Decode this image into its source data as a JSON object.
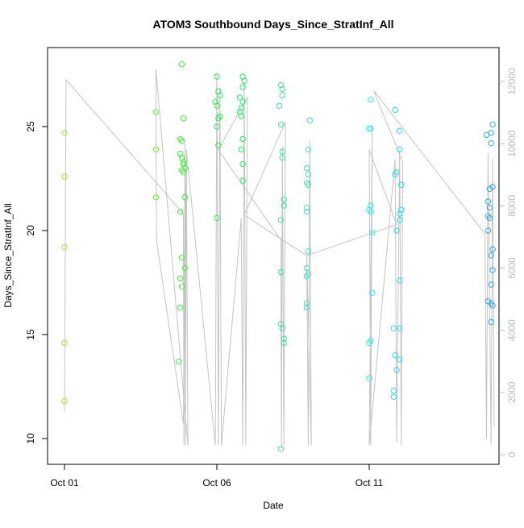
{
  "chart_data": {
    "type": "scatter",
    "title": "ATOM3 Southbound Days_Since_StratInf_All",
    "x_label": "Date",
    "y_label": "Days_Since_StratInf_All",
    "xlim": [
      -0.556,
      14.26
    ],
    "ylim": [
      8.76,
      28.8
    ],
    "y2lim": [
      -311,
      13089
    ],
    "xticks": [
      {
        "value": 0,
        "label": "Oct 01"
      },
      {
        "value": 5,
        "label": "Oct 06"
      },
      {
        "value": 10,
        "label": "Oct 11"
      }
    ],
    "yticks": [
      10,
      15,
      20,
      25
    ],
    "y2ticks": [
      0,
      2000,
      4000,
      6000,
      8000,
      10000,
      12000
    ],
    "series": [
      {
        "type": "line",
        "axis": "y2",
        "color": "#c4c4c4",
        "x": [
          0,
          0.05,
          3.9,
          3.92,
          3.95,
          3.97,
          4.0,
          4.05,
          3.0,
          3.02,
          3.9,
          4.0,
          4.95,
          5.0,
          5.05,
          5.1,
          5.15,
          5.8,
          5.85,
          5.9,
          5.95,
          6.0,
          5.05,
          7.1,
          7.12,
          7.15,
          7.2,
          7.25,
          5.9,
          7.95,
          8.0,
          8.05,
          8.1,
          7.95,
          10.9,
          10.0,
          10.05,
          10.1,
          10.0,
          10.85,
          10.9,
          11.0,
          11.05,
          11.1,
          10.15,
          13.8,
          13.85,
          13.9,
          14.0,
          14.05,
          14.1
        ],
        "values": [
          1400,
          12050,
          7750,
          300,
          10000,
          300,
          9500,
          300,
          12400,
          6900,
          1000,
          9800,
          300,
          12300,
          300,
          11800,
          300,
          7600,
          300,
          12000,
          300,
          11500,
          9800,
          6900,
          200,
          9900,
          300,
          10700,
          7700,
          6400,
          300,
          10100,
          300,
          6400,
          7400,
          9800,
          300,
          10600,
          300,
          9500,
          400,
          9800,
          300,
          9400,
          11700,
          7100,
          500,
          9700,
          300,
          9500,
          900
        ]
      },
      {
        "color": "#9ae640",
        "x": [
          0,
          0,
          0,
          0,
          0
        ],
        "values": [
          24.7,
          22.6,
          19.2,
          14.6,
          11.8
        ]
      },
      {
        "color": "#7ae640",
        "x": [
          3.0,
          3.0,
          3.0
        ],
        "values": [
          25.7,
          23.9,
          21.6
        ]
      },
      {
        "color": "#4de64a",
        "x": [
          3.85,
          3.9,
          3.8,
          3.85,
          3.8,
          3.85,
          3.9,
          3.9,
          3.95,
          3.85,
          3.9,
          3.95,
          3.8,
          3.85,
          3.95,
          3.8,
          3.85,
          3.8,
          3.75
        ],
        "values": [
          28.0,
          25.4,
          24.4,
          24.3,
          23.7,
          23.5,
          23.3,
          23.2,
          23.0,
          22.9,
          22.8,
          21.6,
          20.9,
          18.7,
          18.2,
          17.7,
          17.3,
          16.3,
          13.7
        ]
      },
      {
        "color": "#33e655",
        "x": [
          5.0,
          5.05,
          5.1,
          4.95,
          5.0,
          5.1,
          5.05,
          5.0,
          5.05,
          5.0
        ],
        "values": [
          27.4,
          26.7,
          26.5,
          26.2,
          26.0,
          25.5,
          25.4,
          25.0,
          24.1,
          20.6
        ]
      },
      {
        "color": "#33e670",
        "x": [
          5.85,
          5.9,
          5.85,
          5.75,
          5.85,
          5.8,
          5.75,
          5.8,
          5.85,
          5.8,
          5.85,
          5.85
        ],
        "values": [
          27.4,
          27.2,
          26.9,
          26.4,
          26.2,
          25.9,
          25.7,
          25.5,
          24.4,
          23.9,
          23.2,
          22.4
        ]
      },
      {
        "color": "#33e69a",
        "x": [
          7.1,
          7.15,
          7.15,
          7.05,
          7.1,
          7.15,
          7.15,
          7.2,
          7.2,
          7.1,
          7.1,
          7.1,
          7.15,
          7.2,
          7.2,
          7.1
        ],
        "values": [
          27.0,
          26.8,
          26.5,
          26.0,
          25.1,
          23.8,
          23.5,
          21.5,
          21.2,
          20.5,
          18.0,
          15.5,
          15.3,
          14.8,
          14.6,
          9.5
        ]
      },
      {
        "color": "#33e6bb",
        "x": [
          8.05,
          8.0,
          7.95,
          8.0,
          7.95,
          8.0,
          7.95,
          7.95,
          8.0,
          7.95,
          8.0,
          7.95,
          7.95,
          7.95
        ],
        "values": [
          25.3,
          23.9,
          23.0,
          22.7,
          22.3,
          22.2,
          21.1,
          20.9,
          19.0,
          18.2,
          17.9,
          17.8,
          16.5,
          16.3
        ]
      },
      {
        "color": "#33e6e6",
        "x": [
          10.05,
          10.0,
          10.05,
          10.05,
          10.0,
          10.05,
          10.1,
          10.1,
          10.05,
          10.0,
          10.0
        ],
        "values": [
          26.3,
          24.9,
          24.9,
          21.2,
          21.0,
          20.9,
          19.9,
          17.0,
          14.7,
          14.6,
          12.9
        ]
      },
      {
        "color": "#33d6e6",
        "x": [
          10.85,
          11.0,
          11.0,
          10.9,
          10.85,
          11.05,
          11.05,
          11.0,
          11.0,
          10.9,
          11.0,
          10.8,
          11.0,
          10.85,
          11.0,
          10.9,
          10.8,
          10.8
        ],
        "values": [
          25.8,
          24.8,
          23.9,
          22.8,
          22.7,
          22.2,
          21.0,
          20.8,
          20.5,
          20.0,
          17.6,
          15.3,
          15.3,
          14.0,
          13.8,
          13.3,
          12.3,
          12.0
        ]
      },
      {
        "color": "#3aa6dd",
        "x": [
          14.05,
          14.0,
          13.85,
          14.0,
          14.05,
          13.95,
          13.9,
          13.95,
          13.9,
          13.95,
          13.9,
          14.05,
          14.0,
          14.05,
          14.0,
          13.9,
          14.0,
          14.05,
          14.0
        ],
        "values": [
          25.1,
          24.7,
          24.6,
          24.2,
          22.1,
          22.0,
          21.4,
          21.1,
          20.7,
          20.6,
          20.0,
          19.1,
          18.8,
          18.1,
          17.4,
          16.6,
          16.5,
          16.4,
          15.6
        ]
      }
    ]
  }
}
